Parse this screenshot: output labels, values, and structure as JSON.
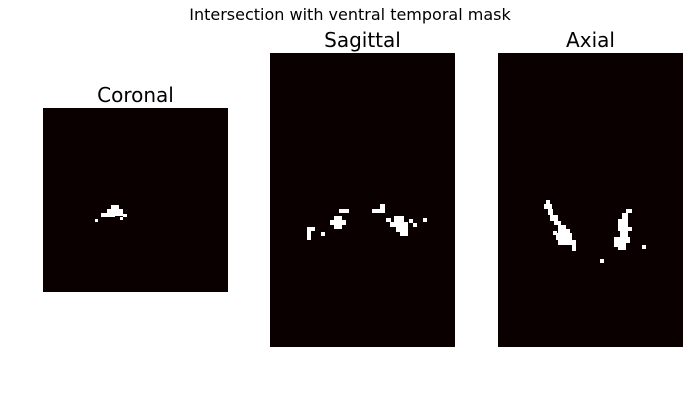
{
  "figure": {
    "title": "Intersection with ventral temporal mask",
    "background_color": "#ffffff",
    "slice_background_color": "#0b0000",
    "mask_color": "#ffffff"
  },
  "panels": [
    {
      "id": "coronal",
      "title": "Coronal"
    },
    {
      "id": "sagittal",
      "title": "Sagittal"
    },
    {
      "id": "axial",
      "title": "Axial"
    }
  ]
}
